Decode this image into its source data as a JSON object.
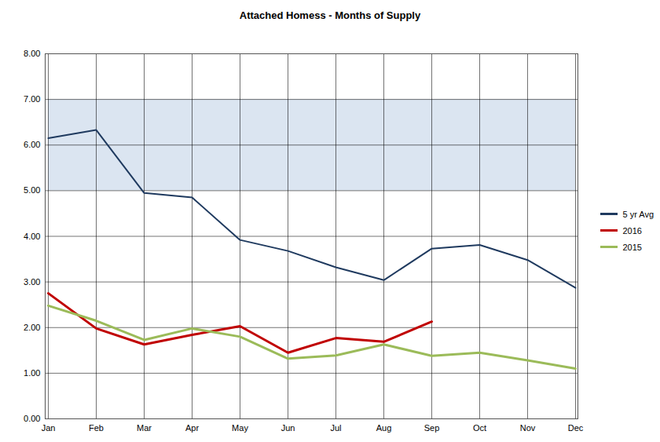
{
  "chart_data": {
    "type": "line",
    "title": "Attached Homess - Months of Supply",
    "categories": [
      "Jan",
      "Feb",
      "Mar",
      "Apr",
      "May",
      "Jun",
      "Jul",
      "Aug",
      "Sep",
      "Oct",
      "Nov",
      "Dec"
    ],
    "series": [
      {
        "name": "5 yr Avg",
        "color": "#1f3a5f",
        "values": [
          6.15,
          6.33,
          4.95,
          4.85,
          3.92,
          3.68,
          3.32,
          3.04,
          3.73,
          3.81,
          3.48,
          2.87
        ]
      },
      {
        "name": "2016",
        "color": "#c00000",
        "values": [
          2.75,
          1.98,
          1.63,
          1.84,
          2.03,
          1.45,
          1.77,
          1.69,
          2.13,
          null,
          null,
          null
        ]
      },
      {
        "name": "2015",
        "color": "#9bbb59",
        "values": [
          2.48,
          2.15,
          1.73,
          1.98,
          1.8,
          1.32,
          1.39,
          1.63,
          1.38,
          1.45,
          1.28,
          1.1
        ]
      }
    ],
    "shaded_range": [
      5,
      7
    ],
    "ylim": [
      0,
      8
    ],
    "yticks": [
      {
        "value": 0,
        "label": "0.00"
      },
      {
        "value": 1,
        "label": "1.00"
      },
      {
        "value": 2,
        "label": "2.00"
      },
      {
        "value": 3,
        "label": "3.00"
      },
      {
        "value": 4,
        "label": "4.00"
      },
      {
        "value": 5,
        "label": "5.00"
      },
      {
        "value": 6,
        "label": "6.00"
      },
      {
        "value": 7,
        "label": "7.00"
      },
      {
        "value": 8,
        "label": "8.00"
      }
    ],
    "grid": true,
    "legend": "right"
  }
}
